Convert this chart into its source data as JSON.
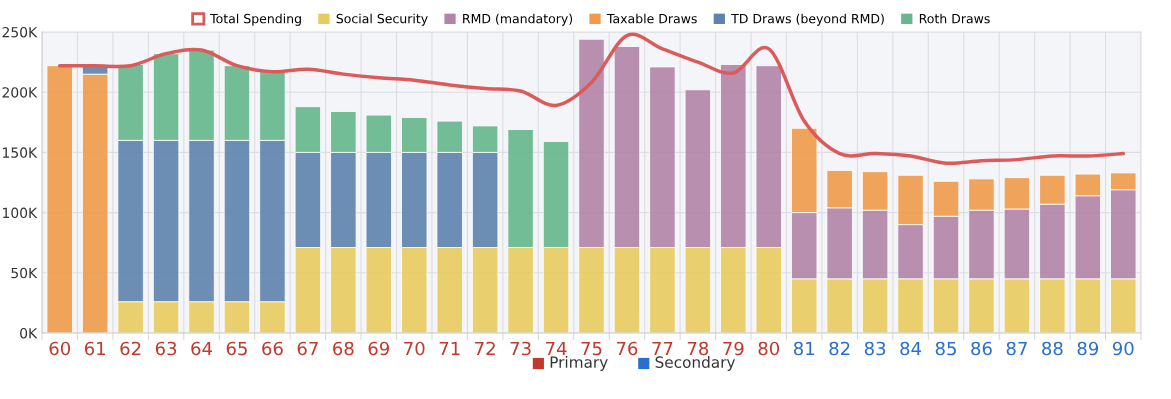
{
  "chart_data": {
    "type": "bar",
    "stacked": true,
    "categories": [
      "60",
      "61",
      "62",
      "63",
      "64",
      "65",
      "66",
      "67",
      "68",
      "69",
      "70",
      "71",
      "72",
      "73",
      "74",
      "75",
      "76",
      "77",
      "78",
      "79",
      "80",
      "81",
      "82",
      "83",
      "84",
      "85",
      "86",
      "87",
      "88",
      "89",
      "90"
    ],
    "annotations": [
      "Primary",
      "Secondary"
    ],
    "series": [
      {
        "name": "Total Spending",
        "type": "line",
        "color": "#dc5a5a",
        "values": [
          222,
          222,
          222,
          232,
          235,
          222,
          217,
          219,
          215,
          212,
          210,
          206,
          203,
          201,
          189,
          208,
          247,
          236,
          225,
          216,
          236,
          176,
          149,
          149,
          147,
          141,
          143,
          144,
          147,
          147,
          149
        ]
      },
      {
        "name": "Social Security",
        "color": "#e8cb5e",
        "values": [
          null,
          null,
          26,
          26,
          26,
          26,
          26,
          71,
          71,
          71,
          71,
          71,
          71,
          71,
          71,
          71,
          71,
          71,
          71,
          71,
          71,
          45,
          45,
          45,
          45,
          45,
          45,
          45,
          45,
          45,
          45
        ]
      },
      {
        "name": "RMD (mandatory)",
        "color": "#b284a8",
        "values": [
          null,
          null,
          null,
          null,
          null,
          null,
          null,
          null,
          null,
          null,
          null,
          null,
          null,
          null,
          null,
          173,
          167,
          150,
          131,
          152,
          151,
          55,
          59,
          57,
          45,
          52,
          57,
          58,
          62,
          69,
          74
        ]
      },
      {
        "name": "Taxable Draws",
        "color": "#ef9b4b",
        "values": [
          222,
          215,
          null,
          null,
          null,
          null,
          null,
          null,
          null,
          null,
          null,
          null,
          null,
          null,
          null,
          null,
          null,
          null,
          null,
          null,
          null,
          70,
          31,
          32,
          41,
          29,
          26,
          26,
          24,
          18,
          14
        ]
      },
      {
        "name": "TD Draws (beyond RMD)",
        "color": "#5e83ae",
        "values": [
          null,
          7,
          134,
          134,
          134,
          134,
          134,
          79,
          79,
          79,
          79,
          79,
          79,
          null,
          null,
          null,
          null,
          null,
          null,
          null,
          null,
          null,
          null,
          null,
          null,
          null,
          null,
          null,
          null,
          null,
          null
        ]
      },
      {
        "name": "Roth Draws",
        "color": "#66b78c",
        "values": [
          null,
          null,
          63,
          72,
          75,
          62,
          57,
          38,
          34,
          31,
          29,
          26,
          22,
          98,
          88,
          null,
          null,
          null,
          null,
          null,
          null,
          null,
          null,
          null,
          null,
          null,
          null,
          null,
          null,
          null,
          null
        ]
      }
    ],
    "ylim": [
      0,
      250
    ],
    "yticks": [
      {
        "value": 0,
        "label": "0K"
      },
      {
        "value": 50,
        "label": "50K"
      },
      {
        "value": 100,
        "label": "100K"
      },
      {
        "value": 150,
        "label": "150K"
      },
      {
        "value": 200,
        "label": "200K"
      },
      {
        "value": 250,
        "label": "250K"
      }
    ],
    "grid": true,
    "legend": "top"
  }
}
